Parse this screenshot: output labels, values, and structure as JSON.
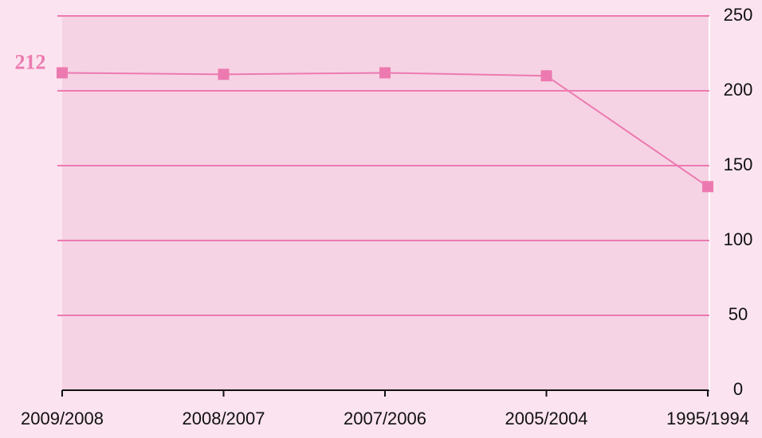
{
  "chart_data": {
    "type": "line",
    "categories": [
      "2009/2008",
      "2008/2007",
      "2007/2006",
      "2005/2004",
      "1995/1994"
    ],
    "series": [
      {
        "color": "#ec7ab0",
        "values": [
          212,
          211,
          212,
          210,
          136
        ]
      }
    ],
    "ylim": [
      0,
      250
    ],
    "yticks": [
      0,
      50,
      100,
      150,
      200,
      250
    ],
    "grid": true
  }
}
